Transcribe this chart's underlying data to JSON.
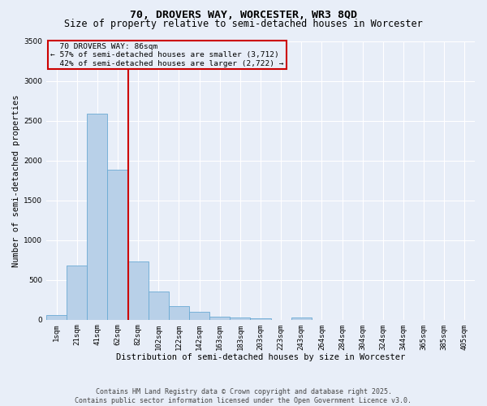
{
  "title_line1": "70, DROVERS WAY, WORCESTER, WR3 8QD",
  "title_line2": "Size of property relative to semi-detached houses in Worcester",
  "xlabel": "Distribution of semi-detached houses by size in Worcester",
  "ylabel": "Number of semi-detached properties",
  "footnote": "Contains HM Land Registry data © Crown copyright and database right 2025.\nContains public sector information licensed under the Open Government Licence v3.0.",
  "bar_color": "#b8d0e8",
  "bar_edge_color": "#6aaad4",
  "background_color": "#e8eef8",
  "categories": [
    "1sqm",
    "21sqm",
    "41sqm",
    "62sqm",
    "82sqm",
    "102sqm",
    "122sqm",
    "142sqm",
    "163sqm",
    "183sqm",
    "203sqm",
    "223sqm",
    "243sqm",
    "264sqm",
    "284sqm",
    "304sqm",
    "324sqm",
    "344sqm",
    "365sqm",
    "385sqm",
    "405sqm"
  ],
  "values": [
    55,
    680,
    2590,
    1890,
    730,
    350,
    175,
    100,
    40,
    25,
    20,
    0,
    25,
    0,
    0,
    0,
    0,
    0,
    0,
    0,
    0
  ],
  "vline_x_index": 3.5,
  "property_label": "70 DROVERS WAY: 86sqm",
  "pct_smaller": 57,
  "pct_larger": 42,
  "count_smaller": 3712,
  "count_larger": 2722,
  "annotation_box_color": "#cc0000",
  "vline_color": "#cc0000",
  "ylim": [
    0,
    3500
  ],
  "yticks": [
    0,
    500,
    1000,
    1500,
    2000,
    2500,
    3000,
    3500
  ],
  "grid_color": "#ffffff",
  "title_fontsize": 9.5,
  "subtitle_fontsize": 8.5,
  "axis_fontsize": 7.5,
  "tick_fontsize": 6.5,
  "annotation_fontsize": 6.8,
  "footnote_fontsize": 6.0
}
